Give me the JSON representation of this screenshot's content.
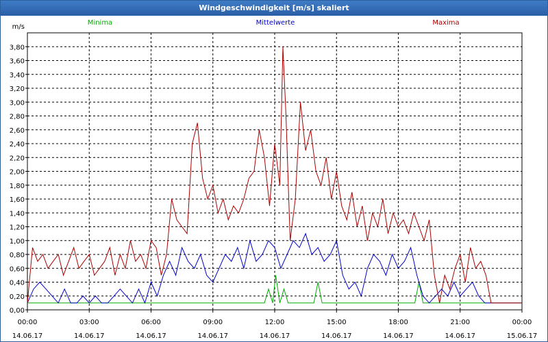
{
  "window": {
    "title": "Windgeschwindigkeit [m/s] skaliert"
  },
  "chart_data": {
    "type": "line",
    "title": "Windgeschwindigkeit [m/s] skaliert",
    "ylabel": "m/s",
    "ylim": [
      0,
      4.0
    ],
    "xlim_hours": [
      0,
      24
    ],
    "y_ticks": [
      "0,00",
      "0,20",
      "0,40",
      "0,60",
      "0,80",
      "1,00",
      "1,20",
      "1,40",
      "1,60",
      "1,80",
      "2,00",
      "2,20",
      "2,40",
      "2,60",
      "2,80",
      "3,00",
      "3,20",
      "3,40",
      "3,60",
      "3,80"
    ],
    "x_ticks": [
      {
        "time": "00:00",
        "date": "14.06.17"
      },
      {
        "time": "03:00",
        "date": "14.06.17"
      },
      {
        "time": "06:00",
        "date": "14.06.17"
      },
      {
        "time": "09:00",
        "date": "14.06.17"
      },
      {
        "time": "12:00",
        "date": "14.06.17"
      },
      {
        "time": "15:00",
        "date": "14.06.17"
      },
      {
        "time": "18:00",
        "date": "14.06.17"
      },
      {
        "time": "21:00",
        "date": "14.06.17"
      },
      {
        "time": "00:00",
        "date": "15.06.17"
      }
    ],
    "grid": true,
    "legend_placement": "top",
    "series": [
      {
        "name": "Minima",
        "color": "#00aa00",
        "x": [
          0,
          11.5,
          11.7,
          11.9,
          12.05,
          12.25,
          12.45,
          12.65,
          13.9,
          14.1,
          14.3,
          18.8,
          19.0,
          19.2,
          24
        ],
        "y": [
          0.1,
          0.1,
          0.3,
          0.1,
          0.5,
          0.1,
          0.3,
          0.1,
          0.1,
          0.4,
          0.1,
          0.1,
          0.4,
          0.1,
          0.1
        ]
      },
      {
        "name": "Mittelwerte",
        "color": "#0000cc",
        "x": [
          0,
          0.3,
          0.6,
          0.9,
          1.2,
          1.5,
          1.8,
          2.1,
          2.4,
          2.7,
          3.0,
          3.3,
          3.6,
          3.9,
          4.2,
          4.5,
          4.8,
          5.1,
          5.4,
          5.7,
          6.0,
          6.3,
          6.6,
          6.9,
          7.2,
          7.5,
          7.8,
          8.1,
          8.4,
          8.7,
          9.0,
          9.3,
          9.6,
          9.9,
          10.2,
          10.5,
          10.8,
          11.1,
          11.4,
          11.7,
          12.0,
          12.3,
          12.6,
          12.9,
          13.2,
          13.5,
          13.8,
          14.1,
          14.4,
          14.7,
          15.0,
          15.3,
          15.6,
          15.9,
          16.2,
          16.5,
          16.8,
          17.1,
          17.4,
          17.7,
          18.0,
          18.3,
          18.6,
          18.9,
          19.2,
          19.5,
          19.8,
          20.1,
          20.4,
          20.7,
          21.0,
          21.3,
          21.6,
          21.9,
          22.2,
          24
        ],
        "y": [
          0.1,
          0.3,
          0.4,
          0.3,
          0.2,
          0.1,
          0.3,
          0.1,
          0.1,
          0.2,
          0.1,
          0.2,
          0.1,
          0.1,
          0.2,
          0.3,
          0.2,
          0.1,
          0.3,
          0.1,
          0.4,
          0.2,
          0.5,
          0.7,
          0.5,
          0.9,
          0.7,
          0.6,
          0.8,
          0.5,
          0.4,
          0.6,
          0.8,
          0.7,
          0.9,
          0.6,
          1.0,
          0.7,
          0.8,
          1.0,
          0.9,
          0.6,
          0.8,
          1.0,
          0.9,
          1.1,
          0.8,
          0.9,
          0.7,
          0.8,
          1.0,
          0.5,
          0.3,
          0.4,
          0.2,
          0.6,
          0.8,
          0.7,
          0.5,
          0.8,
          0.6,
          0.7,
          0.9,
          0.5,
          0.2,
          0.1,
          0.2,
          0.3,
          0.2,
          0.4,
          0.2,
          0.3,
          0.4,
          0.2,
          0.1,
          0.1
        ]
      },
      {
        "name": "Maxima",
        "color": "#aa0000",
        "x": [
          0,
          0.25,
          0.5,
          0.75,
          1.0,
          1.25,
          1.5,
          1.75,
          2.0,
          2.25,
          2.5,
          2.75,
          3.0,
          3.25,
          3.5,
          3.75,
          4.0,
          4.25,
          4.5,
          4.75,
          5.0,
          5.25,
          5.5,
          5.75,
          6.0,
          6.25,
          6.5,
          6.75,
          7.0,
          7.25,
          7.5,
          7.75,
          8.0,
          8.25,
          8.5,
          8.75,
          9.0,
          9.25,
          9.5,
          9.75,
          10.0,
          10.25,
          10.5,
          10.75,
          11.0,
          11.25,
          11.5,
          11.75,
          12.0,
          12.25,
          12.4,
          12.55,
          12.75,
          13.0,
          13.25,
          13.5,
          13.75,
          14.0,
          14.25,
          14.5,
          14.75,
          15.0,
          15.25,
          15.5,
          15.75,
          16.0,
          16.25,
          16.5,
          16.75,
          17.0,
          17.25,
          17.5,
          17.75,
          18.0,
          18.25,
          18.5,
          18.75,
          19.0,
          19.25,
          19.5,
          19.75,
          20.0,
          20.25,
          20.5,
          20.75,
          21.0,
          21.25,
          21.5,
          21.75,
          22.0,
          22.25,
          22.5,
          24
        ],
        "y": [
          0.1,
          0.9,
          0.7,
          0.8,
          0.6,
          0.7,
          0.8,
          0.5,
          0.7,
          0.9,
          0.6,
          0.7,
          0.8,
          0.5,
          0.6,
          0.7,
          0.9,
          0.5,
          0.8,
          0.6,
          1.0,
          0.7,
          0.8,
          0.6,
          1.0,
          0.9,
          0.5,
          0.8,
          1.6,
          1.3,
          1.2,
          1.1,
          2.4,
          2.7,
          1.9,
          1.6,
          1.8,
          1.4,
          1.6,
          1.3,
          1.5,
          1.4,
          1.6,
          1.9,
          2.0,
          2.6,
          2.2,
          1.5,
          2.4,
          1.8,
          3.8,
          2.8,
          1.0,
          1.6,
          3.0,
          2.3,
          2.6,
          2.0,
          1.8,
          2.2,
          1.6,
          2.0,
          1.5,
          1.3,
          1.7,
          1.2,
          1.5,
          1.0,
          1.4,
          1.2,
          1.6,
          1.1,
          1.4,
          1.2,
          1.3,
          1.1,
          1.4,
          1.2,
          1.0,
          1.3,
          0.5,
          0.1,
          0.5,
          0.3,
          0.6,
          0.8,
          0.4,
          0.9,
          0.6,
          0.7,
          0.5,
          0.1,
          0.1
        ]
      }
    ]
  }
}
